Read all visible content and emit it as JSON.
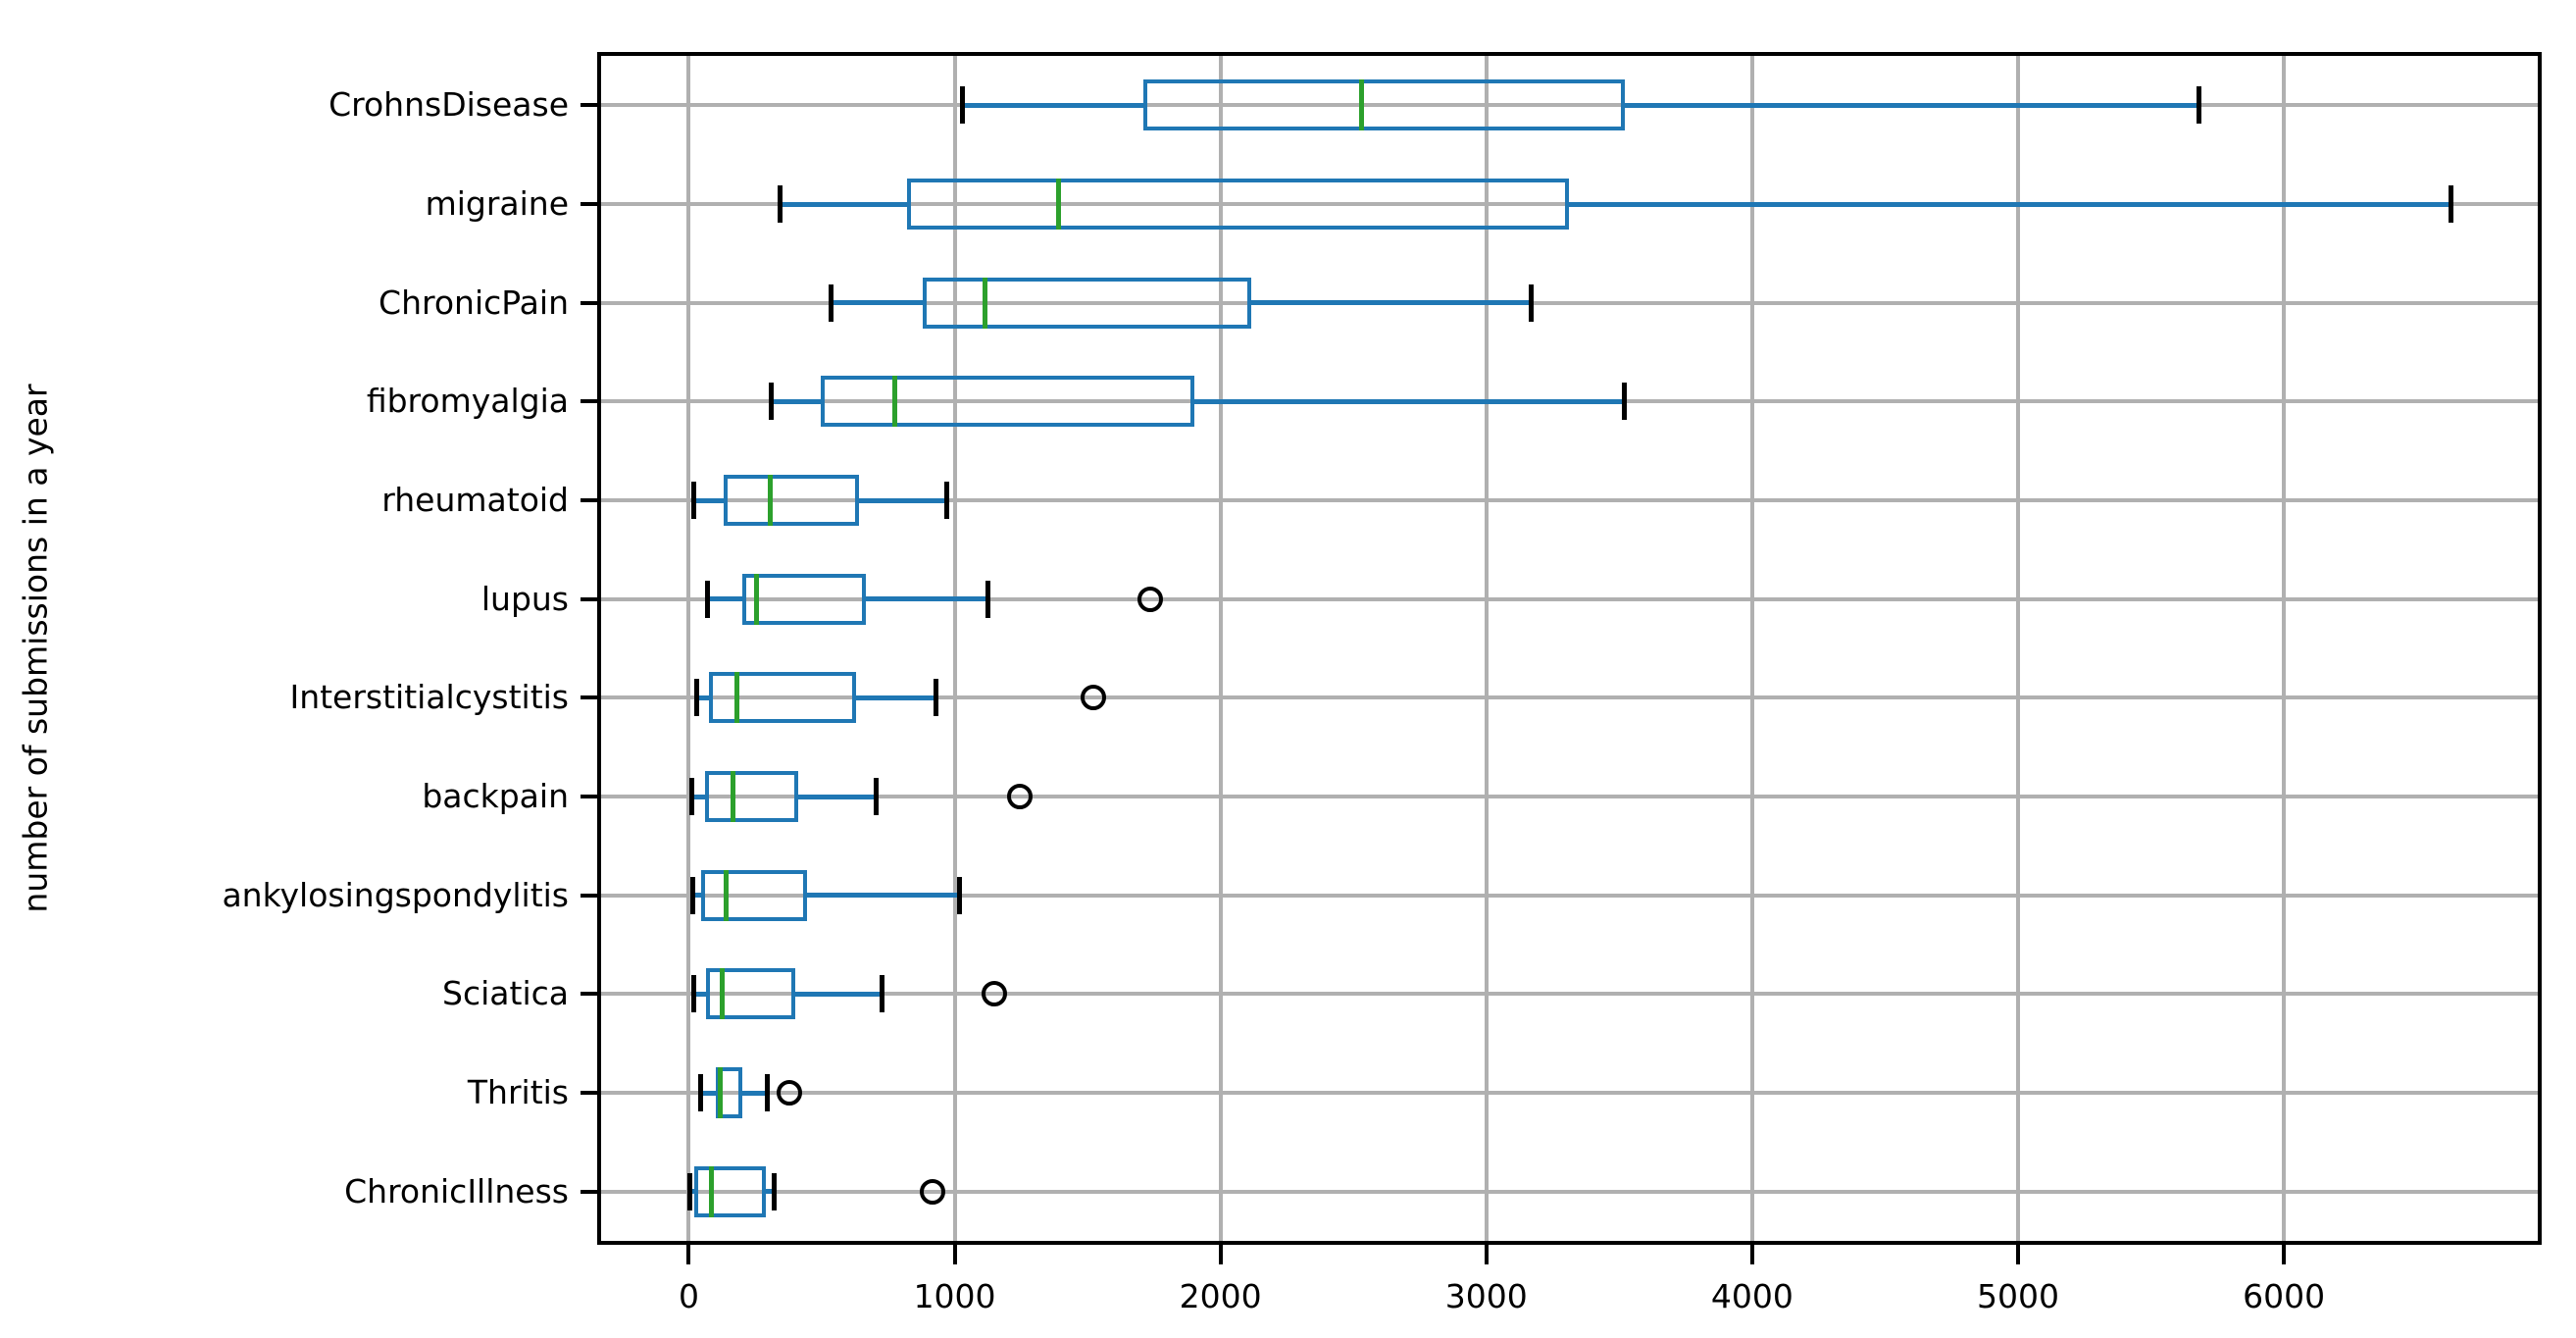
{
  "chart_data": {
    "type": "boxplot",
    "orientation": "horizontal",
    "title": "",
    "xlabel": "",
    "ylabel": "number of submissions in a year",
    "xlim": [
      -330,
      6955
    ],
    "x_ticks": [
      0,
      1000,
      2000,
      3000,
      4000,
      5000,
      6000
    ],
    "grid": true,
    "categories": [
      "CrohnsDisease",
      "migraine",
      "ChronicPain",
      "fibromyalgia",
      "rheumatoid",
      "lupus",
      "Interstitialcystitis",
      "backpain",
      "ankylosingspondylitis",
      "Sciatica",
      "Thritis",
      "ChronicIllness"
    ],
    "series": [
      {
        "name": "CrohnsDisease",
        "whislo": 1030,
        "q1": 1710,
        "med": 2530,
        "q3": 3520,
        "whishi": 5680,
        "fliers": []
      },
      {
        "name": "migraine",
        "whislo": 345,
        "q1": 820,
        "med": 1390,
        "q3": 3310,
        "whishi": 6630,
        "fliers": []
      },
      {
        "name": "ChronicPain",
        "whislo": 535,
        "q1": 880,
        "med": 1115,
        "q3": 2115,
        "whishi": 3170,
        "fliers": []
      },
      {
        "name": "fibromyalgia",
        "whislo": 310,
        "q1": 495,
        "med": 775,
        "q3": 1900,
        "whishi": 3520,
        "fliers": []
      },
      {
        "name": "rheumatoid",
        "whislo": 20,
        "q1": 130,
        "med": 305,
        "q3": 640,
        "whishi": 970,
        "fliers": []
      },
      {
        "name": "lupus",
        "whislo": 70,
        "q1": 200,
        "med": 255,
        "q3": 665,
        "whishi": 1125,
        "fliers": [
          1735
        ]
      },
      {
        "name": "Interstitialcystitis",
        "whislo": 30,
        "q1": 75,
        "med": 180,
        "q3": 630,
        "whishi": 930,
        "fliers": [
          1520
        ]
      },
      {
        "name": "backpain",
        "whislo": 10,
        "q1": 60,
        "med": 165,
        "q3": 410,
        "whishi": 705,
        "fliers": [
          1245
        ]
      },
      {
        "name": "ankylosingspondylitis",
        "whislo": 15,
        "q1": 45,
        "med": 140,
        "q3": 445,
        "whishi": 1020,
        "fliers": []
      },
      {
        "name": "Sciatica",
        "whislo": 20,
        "q1": 65,
        "med": 125,
        "q3": 400,
        "whishi": 725,
        "fliers": [
          1150
        ]
      },
      {
        "name": "Thritis",
        "whislo": 45,
        "q1": 100,
        "med": 120,
        "q3": 200,
        "whishi": 295,
        "fliers": [
          380
        ]
      },
      {
        "name": "ChronicIllness",
        "whislo": 5,
        "q1": 20,
        "med": 85,
        "q3": 290,
        "whishi": 320,
        "fliers": [
          915
        ]
      }
    ],
    "colors": {
      "box": "#1f77b4",
      "whisker": "#1f77b4",
      "median": "#2ca02c",
      "cap": "#000000",
      "flier": "#000000",
      "grid": "#b0b0b0",
      "axis": "#000000",
      "text": "#000000"
    },
    "legend": null
  }
}
